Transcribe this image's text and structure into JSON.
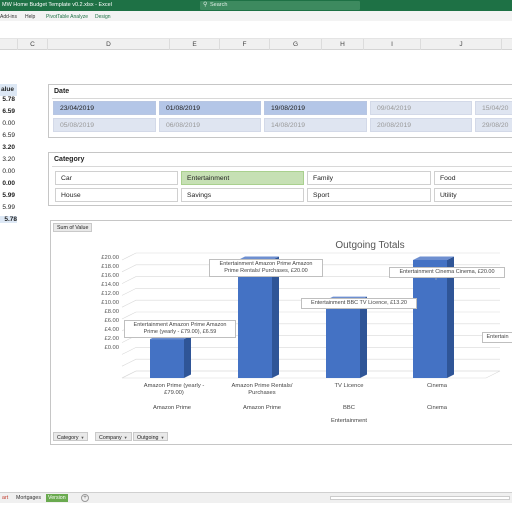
{
  "window": {
    "doc_title": "MW Home Budget Template v0.2.xlsx  -  Excel",
    "search_placeholder": "Search"
  },
  "menu": [
    "Add-ins",
    "Help",
    "PivotTable Analyze",
    "Design"
  ],
  "columns": [
    "C",
    "D",
    "E",
    "F",
    "G",
    "H",
    "I",
    "J"
  ],
  "left_values": {
    "header": "alue",
    "items": [
      "5.78",
      "6.59",
      "0.00",
      "6.59",
      "3.20",
      "3.20",
      "0.00",
      "0.00",
      "5.99",
      "5.99",
      "5.78"
    ]
  },
  "date_slicer": {
    "title": "Date",
    "row1": [
      "23/04/2019",
      "01/08/2019",
      "19/08/2019",
      "09/04/2019",
      "15/04/20"
    ],
    "row2": [
      "05/08/2019",
      "06/08/2019",
      "14/08/2019",
      "20/08/2019",
      "29/08/20"
    ]
  },
  "category_slicer": {
    "title": "Category",
    "items": [
      "Car",
      "Entertainment",
      "Family",
      "Food",
      "House",
      "Savings",
      "Sport",
      "Utility"
    ]
  },
  "chart": {
    "field_button": "Sum of Value",
    "bottom_fields": [
      "Category",
      "Company",
      "Outgoing"
    ],
    "y_ticks": [
      "£20.00",
      "£18.00",
      "£16.00",
      "£14.00",
      "£12.00",
      "£10.00",
      "£8.00",
      "£6.00",
      "£4.00",
      "£2.00",
      "£0.00"
    ],
    "outer_labels": [
      "Amazon Prime",
      "Amazon Prime",
      "BBC",
      "Cinema"
    ],
    "group_label": "Entertainment",
    "data_labels": [
      "Entertainment Amazon Prime Amazon Prime (yearly - £79.00), £6.59",
      "Entertainment Amazon Prime  Amazon Prime Rentals/ Purchases, £20.00",
      "Entertainment BBC TV Licence, £13.20",
      "Entertainment Cinema Cinema, £20.00",
      "Entertain"
    ],
    "colors": {
      "bar": "#4472c4",
      "bar_side": "#2f5597",
      "bar_top": "#6e8fd0"
    }
  },
  "chart_data": {
    "type": "bar",
    "title": "Outgoing Totals",
    "categories": [
      "Amazon Prime (yearly - £79.00)",
      "Amazon Prime Rentals/ Purchases",
      "TV Licence",
      "Cinema"
    ],
    "values": [
      6.59,
      20.0,
      13.2,
      20.0
    ],
    "ylim": [
      0,
      20
    ],
    "grid": true
  },
  "sheet_tabs": [
    "art",
    "Mortgages",
    "Version"
  ]
}
